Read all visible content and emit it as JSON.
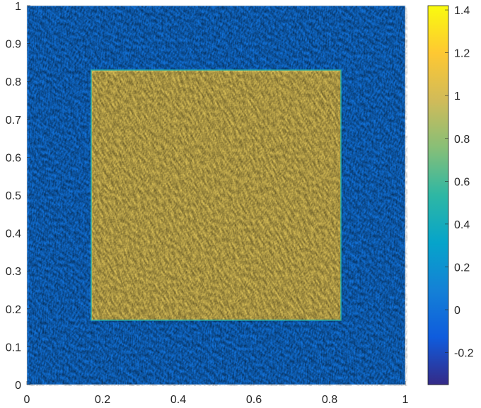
{
  "chart_data": {
    "type": "heatmap",
    "title": "",
    "xlabel": "",
    "ylabel": "",
    "xlim": [
      0,
      1
    ],
    "ylim": [
      0,
      1
    ],
    "x_ticks": [
      "0",
      "0.2",
      "0.4",
      "0.6",
      "0.8",
      "1"
    ],
    "y_ticks": [
      "0",
      "0.1",
      "0.2",
      "0.3",
      "0.4",
      "0.5",
      "0.6",
      "0.7",
      "0.8",
      "0.9",
      "1"
    ],
    "field": {
      "background_value": 0.0,
      "square_value": 1.0,
      "square_x_range": [
        0.17,
        0.83
      ],
      "square_y_range": [
        0.17,
        0.83
      ],
      "noise_amplitude": 0.15
    },
    "colorbar": {
      "range": [
        -0.35,
        1.42
      ],
      "ticks": [
        "-0.2",
        "0",
        "0.2",
        "0.4",
        "0.6",
        "0.8",
        "1",
        "1.2",
        "1.4"
      ],
      "tick_values": [
        -0.2,
        0,
        0.2,
        0.4,
        0.6,
        0.8,
        1.0,
        1.2,
        1.4
      ],
      "colormap": "parula",
      "colors": [
        "#352a87",
        "#0f5cdd",
        "#1481d6",
        "#06a4ca",
        "#2eb7a4",
        "#87bf77",
        "#d1bb59",
        "#fec832",
        "#f9fb0e"
      ]
    },
    "grid": false,
    "legend": "none"
  }
}
